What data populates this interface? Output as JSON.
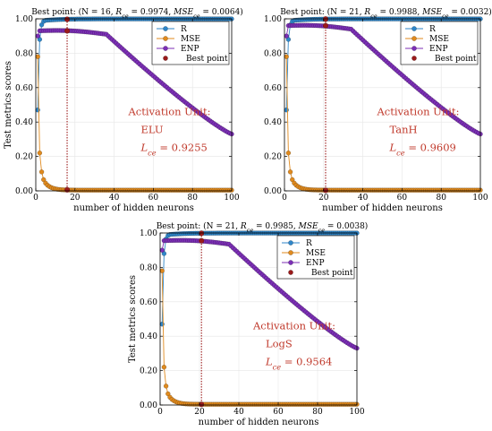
{
  "colors": {
    "R": "#2f86c9",
    "MSE": "#e08a1e",
    "ENP": "#7c2fb6",
    "best": "#9b1b1b",
    "annotation": "#c0392b"
  },
  "chart_data": [
    {
      "type": "line",
      "title": "Best point: (N = 16, R_ce = 0.9974, MSE_ce = 0.0064)",
      "xlabel": "number of hidden neurons",
      "ylabel": "Test metrics scores",
      "xlim": [
        0,
        100
      ],
      "ylim": [
        0,
        1
      ],
      "xticks": [
        "0",
        "20",
        "40",
        "60",
        "80",
        "100"
      ],
      "yticks": [
        "0.00",
        "0.20",
        "0.40",
        "0.60",
        "0.80",
        "1.00"
      ],
      "legend": {
        "position": "top-right",
        "entries": [
          "R",
          "MSE",
          "ENP",
          "Best point"
        ]
      },
      "annotation": {
        "line1": "Activation Unit:",
        "line2": "ELU",
        "line3": "L_ce = 0.9255"
      },
      "best_point": {
        "x": 16,
        "R": 0.9974,
        "MSE": 0.0064,
        "ENP": 0.93
      },
      "params": {
        "plateau": 0.93,
        "knee": 36,
        "tail": 0.33
      }
    },
    {
      "type": "line",
      "title": "Best point: (N = 21, R_ce = 0.9988, MSE_ce = 0.0032)",
      "xlabel": "number of hidden neurons",
      "ylabel": "",
      "xlim": [
        0,
        100
      ],
      "ylim": [
        0,
        1
      ],
      "xticks": [
        "0",
        "20",
        "40",
        "60",
        "80",
        "100"
      ],
      "yticks": [
        "0.00",
        "0.20",
        "0.40",
        "0.60",
        "0.80",
        "1.00"
      ],
      "legend": {
        "position": "top-right",
        "entries": [
          "R",
          "MSE",
          "ENP",
          "Best point"
        ]
      },
      "annotation": {
        "line1": "Activation Unit:",
        "line2": "TanH",
        "line3": "L_ce = 0.9609"
      },
      "best_point": {
        "x": 21,
        "R": 0.9988,
        "MSE": 0.0032,
        "ENP": 0.96
      },
      "params": {
        "plateau": 0.96,
        "knee": 34,
        "tail": 0.33
      }
    },
    {
      "type": "line",
      "title": "Best point: (N = 21, R_ce = 0.9985, MSE_ce = 0.0038)",
      "xlabel": "number of hidden neurons",
      "ylabel": "Test metrics scores",
      "xlim": [
        0,
        100
      ],
      "ylim": [
        0,
        1
      ],
      "xticks": [
        "0",
        "20",
        "40",
        "60",
        "80",
        "100"
      ],
      "yticks": [
        "0.00",
        "0.20",
        "0.40",
        "0.60",
        "0.80",
        "1.00"
      ],
      "legend": {
        "position": "top-right",
        "entries": [
          "R",
          "MSE",
          "ENP",
          "Best point"
        ]
      },
      "annotation": {
        "line1": "Activation Unit:",
        "line2": "LogS",
        "line3": "L_ce = 0.9564"
      },
      "best_point": {
        "x": 21,
        "R": 0.9985,
        "MSE": 0.0038,
        "ENP": 0.955
      },
      "params": {
        "plateau": 0.955,
        "knee": 35,
        "tail": 0.33
      }
    }
  ]
}
